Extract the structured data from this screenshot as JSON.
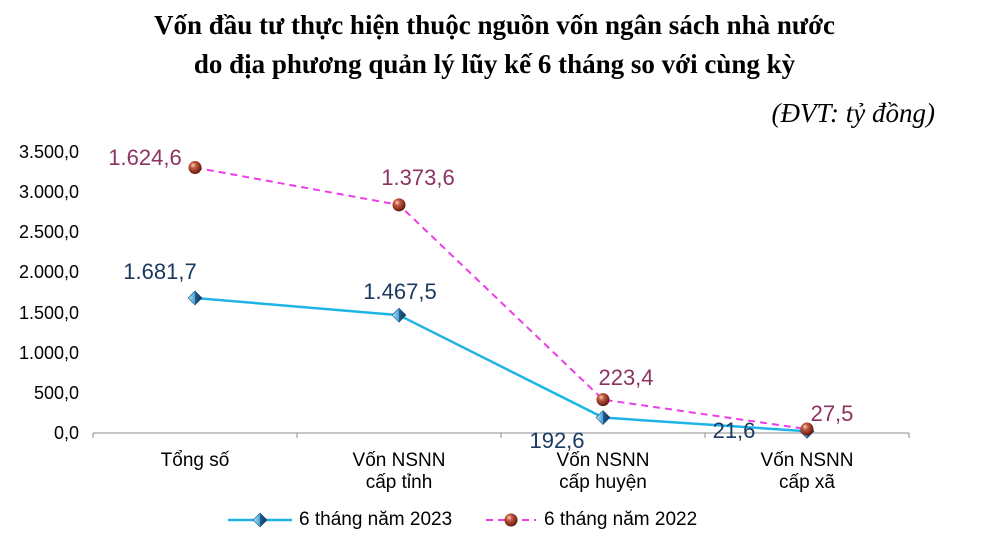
{
  "chart_data": {
    "type": "line",
    "stacked": true,
    "title": [
      "Vốn đầu tư thực hiện thuộc nguồn vốn ngân sách nhà nước",
      "do địa phương quản lý lũy kế 6 tháng so với cùng kỳ"
    ],
    "unit": "(ĐVT: tỷ đồng)",
    "categories": [
      "Tổng số",
      "Vốn NSNN cấp tỉnh",
      "Vốn NSNN cấp huyện",
      "Vốn NSNN cấp xã"
    ],
    "ylim": [
      0,
      3500
    ],
    "yticks": [
      0,
      500,
      1000,
      1500,
      2000,
      2500,
      3000,
      3500
    ],
    "ytick_labels": [
      "0,0",
      "500,0",
      "1.000,0",
      "1.500,0",
      "2.000,0",
      "2.500,0",
      "3.000,0",
      "3.500,0"
    ],
    "grid": false,
    "legend": "bottom",
    "series": [
      {
        "name": "6 tháng năm 2023",
        "values": [
          1681.7,
          1467.5,
          192.6,
          21.6
        ],
        "labels": [
          "1.681,7",
          "1.467,5",
          "192,6",
          "21,6"
        ],
        "line_style": "solid",
        "marker": "diamond",
        "color": "#1EB3E7",
        "label_color": "#1B3A61"
      },
      {
        "name": "6 tháng năm 2022",
        "values": [
          1624.6,
          1373.6,
          223.4,
          27.5
        ],
        "labels": [
          "1.624,6",
          "1.373,6",
          "223,4",
          "27,5"
        ],
        "line_style": "dashed",
        "marker": "sphere",
        "color": "#EC3EE4",
        "label_color": "#8C3461"
      }
    ]
  }
}
